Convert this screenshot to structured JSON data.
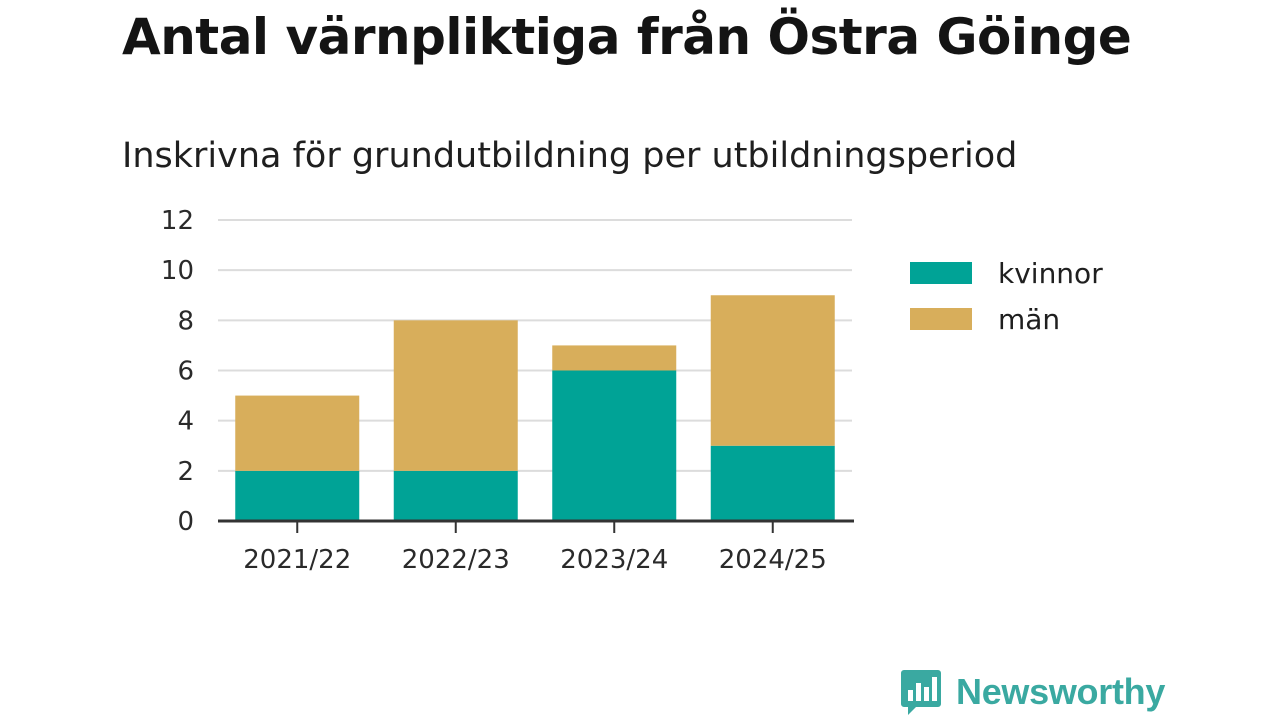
{
  "title": "Antal värnpliktiga från Östra Göinge",
  "subtitle": "Inskrivna för grundutbildning per utbildningsperiod",
  "chart_data": {
    "type": "bar",
    "stacked": true,
    "categories": [
      "2021/22",
      "2022/23",
      "2023/24",
      "2024/25"
    ],
    "series": [
      {
        "name": "kvinnor",
        "values": [
          2,
          2,
          6,
          3
        ],
        "color": "#00a396"
      },
      {
        "name": "män",
        "values": [
          3,
          6,
          1,
          6
        ],
        "color": "#d8ae5b"
      }
    ],
    "ylim": [
      0,
      12
    ],
    "yticks": [
      0,
      2,
      4,
      6,
      8,
      10,
      12
    ],
    "grid": true,
    "legend_position": "right"
  },
  "logo": {
    "text": "Newsworthy",
    "icon": "newsworthy-bar-chart-icon",
    "color": "#3aa9a1"
  }
}
